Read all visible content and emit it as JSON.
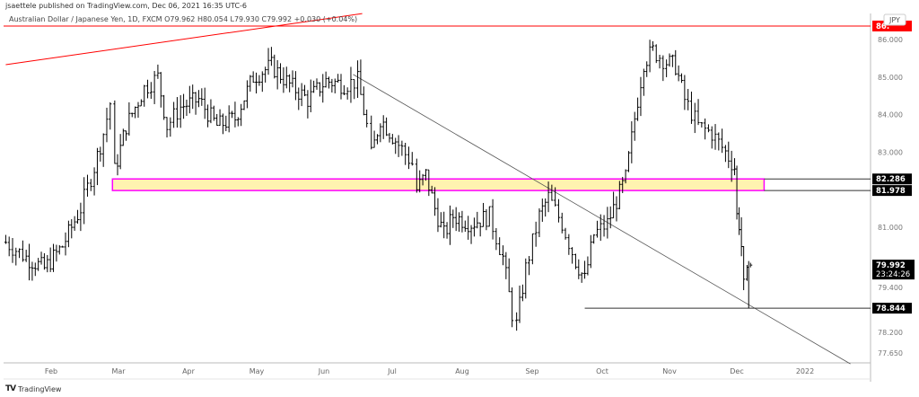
{
  "header": {
    "published": "jsaettele published on TradingView.com, Dec 06, 2021 16:35 UTC-6",
    "legend": "Australian Dollar / Japanese Yen, 1D, FXCM  O79.962  H80.054  L79.930  C79.992  +0.030 (+0.04%)"
  },
  "footer": {
    "brand": "TradingView"
  },
  "chart_data": {
    "type": "candlestick",
    "currency": "JPY",
    "x_ticks": [
      "Feb",
      "Mar",
      "Apr",
      "May",
      "Jun",
      "Jul",
      "Aug",
      "Sep",
      "Oct",
      "Nov",
      "Dec",
      "2022"
    ],
    "y_ticks": [
      "86.000",
      "85.000",
      "84.000",
      "83.000",
      "81.000",
      "79.400",
      "78.200",
      "77.650"
    ],
    "y_tick_values": [
      86,
      85,
      84,
      83,
      81,
      79.4,
      78.2,
      77.65
    ],
    "price_labels": [
      {
        "text": "86.",
        "price": 86.36,
        "color": "#ff0000"
      },
      {
        "text": "82.286",
        "price": 82.286,
        "color": "#000000"
      },
      {
        "text": "81.978",
        "price": 81.978,
        "color": "#000000"
      },
      {
        "text": "79.992",
        "sub": "23:24:26",
        "price": 79.992,
        "color": "#000000"
      },
      {
        "text": "78.844",
        "price": 78.844,
        "color": "#000000"
      }
    ],
    "anchors": [
      [
        "2021-01-12",
        80.6
      ],
      [
        "2021-01-21",
        80.2
      ],
      [
        "2021-01-29",
        79.9
      ],
      [
        "2021-02-06",
        80.5
      ],
      [
        "2021-02-14",
        81.5
      ],
      [
        "2021-02-20",
        82.6
      ],
      [
        "2021-02-24",
        83.5
      ],
      [
        "2021-02-27",
        84.3
      ],
      [
        "2021-03-01",
        82.5
      ],
      [
        "2021-03-06",
        83.7
      ],
      [
        "2021-03-14",
        84.7
      ],
      [
        "2021-03-20",
        85.0
      ],
      [
        "2021-03-24",
        83.7
      ],
      [
        "2021-03-30",
        84.2
      ],
      [
        "2021-04-07",
        84.4
      ],
      [
        "2021-04-15",
        83.7
      ],
      [
        "2021-04-23",
        83.9
      ],
      [
        "2021-05-01",
        85.0
      ],
      [
        "2021-05-09",
        85.3
      ],
      [
        "2021-05-17",
        84.8
      ],
      [
        "2021-05-25",
        84.4
      ],
      [
        "2021-06-02",
        84.9
      ],
      [
        "2021-06-10",
        84.8
      ],
      [
        "2021-06-16",
        84.9
      ],
      [
        "2021-06-20",
        83.7
      ],
      [
        "2021-06-22",
        82.9
      ],
      [
        "2021-06-26",
        83.9
      ],
      [
        "2021-07-04",
        83.2
      ],
      [
        "2021-07-10",
        82.7
      ],
      [
        "2021-07-12",
        82.0
      ],
      [
        "2021-07-16",
        82.4
      ],
      [
        "2021-07-20",
        81.5
      ],
      [
        "2021-07-24",
        80.8
      ],
      [
        "2021-07-28",
        81.3
      ],
      [
        "2021-08-05",
        81.1
      ],
      [
        "2021-08-13",
        81.3
      ],
      [
        "2021-08-19",
        80.2
      ],
      [
        "2021-08-23",
        78.7
      ],
      [
        "2021-08-25",
        78.4
      ],
      [
        "2021-08-29",
        79.9
      ],
      [
        "2021-09-04",
        81.3
      ],
      [
        "2021-09-08",
        81.8
      ],
      [
        "2021-09-14",
        81.1
      ],
      [
        "2021-09-20",
        80.1
      ],
      [
        "2021-09-24",
        79.6
      ],
      [
        "2021-09-28",
        80.8
      ],
      [
        "2021-10-04",
        81.1
      ],
      [
        "2021-10-12",
        82.3
      ],
      [
        "2021-10-16",
        83.9
      ],
      [
        "2021-10-20",
        85.4
      ],
      [
        "2021-10-24",
        85.7
      ],
      [
        "2021-10-30",
        85.4
      ],
      [
        "2021-11-03",
        85.3
      ],
      [
        "2021-11-07",
        84.4
      ],
      [
        "2021-11-13",
        83.7
      ],
      [
        "2021-11-19",
        83.5
      ],
      [
        "2021-11-25",
        83.0
      ],
      [
        "2021-11-29",
        82.6
      ],
      [
        "2021-11-30",
        81.3
      ],
      [
        "2021-12-01",
        81.1
      ],
      [
        "2021-12-02",
        80.5
      ],
      [
        "2021-12-03",
        79.4
      ],
      [
        "2021-12-06",
        79.992
      ]
    ],
    "drawings": {
      "red_trendline": {
        "from": [
          "2021-01-12",
          85.33
        ],
        "to": [
          "2021-06-18",
          86.69
        ],
        "color": "#ff0000"
      },
      "red_horizontal": {
        "price": 86.36,
        "color": "#ff0000"
      },
      "grey_trendline": {
        "from": [
          "2021-06-14",
          85.07
        ],
        "to": [
          "2022-01-19",
          77.36
        ],
        "color": "#555555"
      },
      "zone": {
        "top": 82.286,
        "bottom": 81.978,
        "from": "2021-02-28",
        "to": "2021-12-12",
        "fill": "#fff3b0",
        "border": "#ff00ff"
      },
      "support_line": {
        "price": 78.844,
        "from": "2021-09-24",
        "color": "#333333"
      }
    },
    "grid": false
  }
}
